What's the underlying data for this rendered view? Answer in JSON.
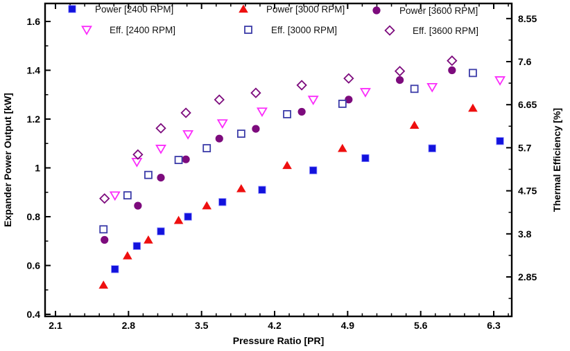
{
  "page": {
    "background": "#ffffff",
    "axis_color": "#000000"
  },
  "chart_data": {
    "type": "scatter",
    "title": "",
    "xlabel": "Pressure Ratio [PR]",
    "ylabel_left": "Expander Power Output [kW]",
    "ylabel_right": "Thermal Efficiency [%]",
    "x_tick_labels": [
      "2.1",
      "2.8",
      "3.5",
      "4.2",
      "4.9",
      "5.6",
      "6.3"
    ],
    "y_left_tick_labels": [
      "0.4",
      "0.6",
      "0.8",
      "1",
      "1.2",
      "1.4",
      "1.6"
    ],
    "y_right_tick_labels": [
      "2.85",
      "3.8",
      "4.75",
      "5.7",
      "6.65",
      "7.6",
      "8.55"
    ],
    "xlim": [
      2.0,
      6.47
    ],
    "ylim_left": [
      0.39,
      1.675
    ],
    "ylim_right": [
      1.98,
      8.88
    ],
    "x_minor_step": 0.14,
    "y_left_minor_step": 0.1,
    "y_right_minor_step": 0.475,
    "grid": false,
    "legend_position": "top-inside",
    "legend_rows": [
      [
        0,
        1,
        2
      ],
      [
        3,
        4,
        5
      ]
    ],
    "series": [
      {
        "name": "Power [2400 RPM]",
        "axis": "left",
        "marker": "square-filled",
        "color": "#1212dd",
        "x": [
          2.67,
          2.88,
          3.11,
          3.37,
          3.7,
          4.08,
          4.57,
          5.07,
          5.71,
          6.36
        ],
        "y": [
          0.585,
          0.68,
          0.74,
          0.8,
          0.86,
          0.91,
          0.99,
          1.04,
          1.08,
          1.11
        ]
      },
      {
        "name": "Power [3000 RPM]",
        "axis": "left",
        "marker": "triangle-up-filled",
        "color": "#ee0f0f",
        "x": [
          2.56,
          2.79,
          2.99,
          3.28,
          3.55,
          3.88,
          4.32,
          4.85,
          5.54,
          6.1
        ],
        "y": [
          0.52,
          0.64,
          0.705,
          0.785,
          0.845,
          0.915,
          1.01,
          1.08,
          1.175,
          1.245
        ]
      },
      {
        "name": "Power [3600 RPM]",
        "axis": "left",
        "marker": "circle-filled",
        "color": "#7d0b7d",
        "x": [
          2.57,
          2.89,
          3.11,
          3.35,
          3.67,
          4.02,
          4.46,
          4.91,
          5.4,
          5.9
        ],
        "y": [
          0.705,
          0.845,
          0.96,
          1.035,
          1.12,
          1.16,
          1.23,
          1.28,
          1.36,
          1.4
        ]
      },
      {
        "name": "Eff. [2400 RPM]",
        "axis": "right",
        "marker": "triangle-down-open",
        "color": "#fb2cfb",
        "x": [
          2.67,
          2.88,
          3.11,
          3.37,
          3.7,
          4.08,
          4.57,
          5.07,
          5.71,
          6.36
        ],
        "y": [
          4.65,
          5.39,
          5.68,
          6.0,
          6.24,
          6.5,
          6.76,
          6.93,
          7.04,
          7.19
        ]
      },
      {
        "name": "Eff. [3000 RPM]",
        "axis": "right",
        "marker": "square-open",
        "color": "#3b3ba8",
        "x": [
          2.56,
          2.79,
          2.99,
          3.28,
          3.55,
          3.88,
          4.32,
          4.85,
          5.54,
          6.1
        ],
        "y": [
          3.9,
          4.65,
          5.1,
          5.43,
          5.69,
          6.01,
          6.44,
          6.67,
          7.0,
          7.35
        ]
      },
      {
        "name": "Eff. [3600 RPM]",
        "axis": "right",
        "marker": "diamond-open",
        "color": "#7d0b7d",
        "x": [
          2.57,
          2.89,
          3.11,
          3.35,
          3.67,
          4.02,
          4.46,
          4.91,
          5.4,
          5.9
        ],
        "y": [
          4.58,
          5.55,
          6.13,
          6.47,
          6.76,
          6.91,
          7.08,
          7.23,
          7.39,
          7.62
        ]
      }
    ]
  }
}
